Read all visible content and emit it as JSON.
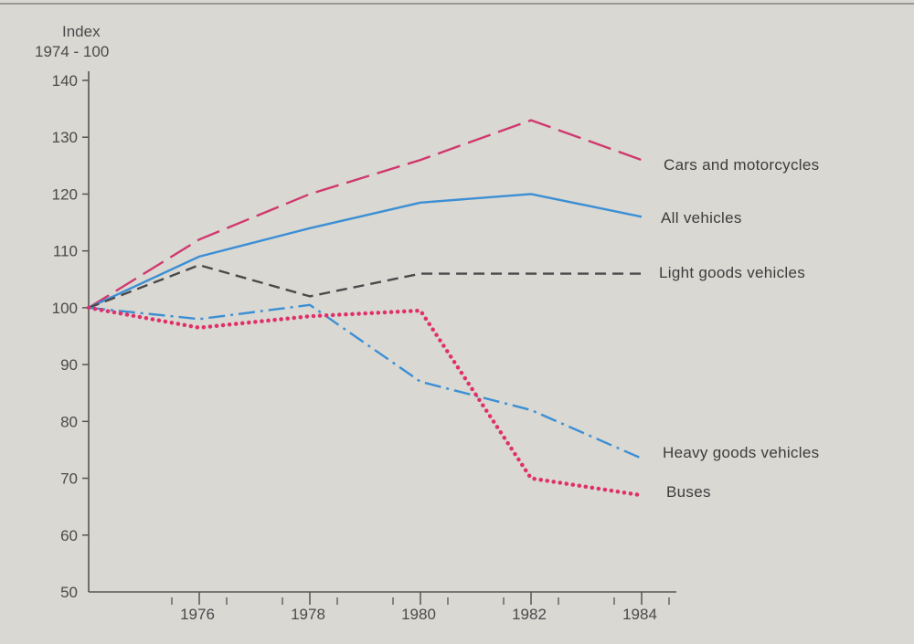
{
  "chart_data": {
    "type": "line",
    "ylabel_line1": "Index",
    "ylabel_line2": "1974 - 100",
    "ylim": [
      50,
      140
    ],
    "yticks": [
      140,
      130,
      120,
      110,
      100,
      90,
      80,
      70,
      60,
      50
    ],
    "xlim": [
      1974,
      1984.5
    ],
    "xticks": [
      "1976",
      "1978",
      "1980",
      "1982",
      "1984"
    ],
    "grid": false,
    "legend": "inline labels at right end of each line",
    "series": [
      {
        "name": "Cars and motorcycles",
        "color": "#d0386e",
        "style": "long-dash",
        "x": [
          1974,
          1976,
          1978,
          1980,
          1982,
          1984
        ],
        "y": [
          100,
          112,
          120,
          126,
          133,
          126
        ]
      },
      {
        "name": "All vehicles",
        "color": "#3c8fd4",
        "style": "solid",
        "x": [
          1974,
          1976,
          1978,
          1980,
          1982,
          1984
        ],
        "y": [
          100,
          109,
          114,
          118.5,
          120,
          116
        ]
      },
      {
        "name": "Light goods vehicles",
        "color": "#4a4a4a",
        "style": "dash",
        "x": [
          1974,
          1976,
          1978,
          1980,
          1982,
          1984
        ],
        "y": [
          100,
          107.5,
          102,
          106,
          106,
          106
        ]
      },
      {
        "name": "Heavy goods vehicles",
        "color": "#3c8fd4",
        "style": "dash-dot",
        "x": [
          1974,
          1976,
          1978,
          1980,
          1982,
          1984
        ],
        "y": [
          100,
          98,
          100.5,
          87,
          82,
          73.5
        ]
      },
      {
        "name": "Buses",
        "color": "#e0306a",
        "style": "dotted",
        "x": [
          1974,
          1976,
          1978,
          1980,
          1982,
          1984
        ],
        "y": [
          100,
          96.5,
          98.5,
          99.5,
          70,
          67
        ]
      }
    ]
  }
}
